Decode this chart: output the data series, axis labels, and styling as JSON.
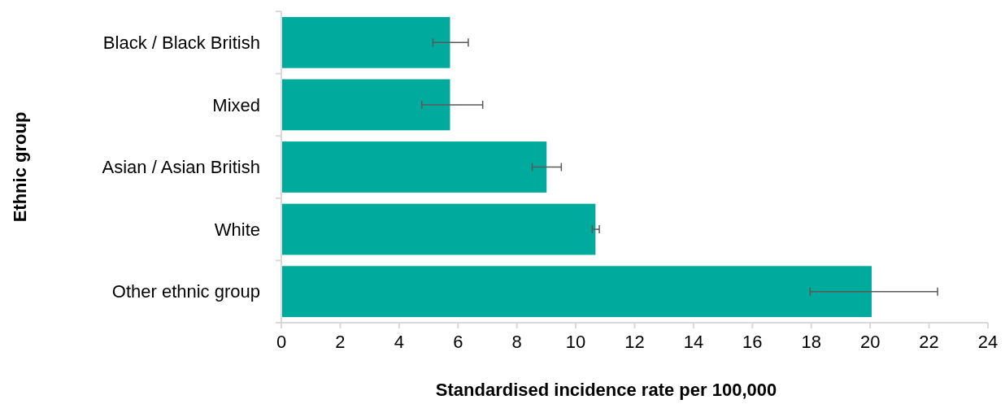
{
  "chart_data": {
    "type": "bar",
    "orientation": "horizontal",
    "xlabel": "Standardised incidence rate per 100,000",
    "ylabel": "Ethnic group",
    "categories": [
      "Black / Black British",
      "Mixed",
      "Asian / Asian British",
      "White",
      "Other ethnic group"
    ],
    "values": [
      5.73,
      5.73,
      9.01,
      10.67,
      20.05
    ],
    "color": "#00ab9e",
    "errors": [
      [
        5.15,
        6.35
      ],
      [
        4.77,
        6.84
      ],
      [
        8.52,
        9.51
      ],
      [
        10.56,
        10.8
      ],
      [
        17.96,
        22.29
      ]
    ],
    "xlim": [
      0,
      24
    ],
    "xticks": [
      0,
      2,
      4,
      6,
      8,
      10,
      12,
      14,
      16,
      18,
      20,
      22,
      24
    ],
    "grid": false
  }
}
